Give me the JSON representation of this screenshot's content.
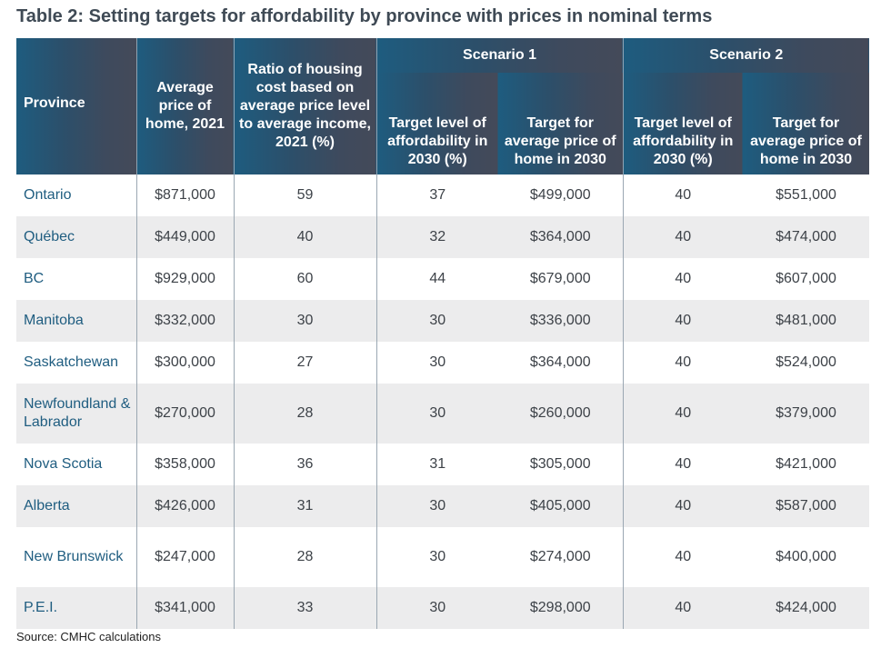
{
  "title": "Table 2: Setting targets for affordability by province with prices in nominal terms",
  "headers": {
    "province": "Province",
    "avg_price": "Average price of home, 2021",
    "ratio": "Ratio of housing cost based on average price level to average income, 2021 (%)",
    "scenario1": "Scenario 1",
    "scenario2": "Scenario 2",
    "target_level": "Target level of affordability in 2030 (%)",
    "target_price": "Target for average price of home in 2030"
  },
  "rows": [
    {
      "province": "Ontario",
      "avg_price": "$871,000",
      "ratio": "59",
      "s1_level": "37",
      "s1_price": "$499,000",
      "s2_level": "40",
      "s2_price": "$551,000"
    },
    {
      "province": "Québec",
      "avg_price": "$449,000",
      "ratio": "40",
      "s1_level": "32",
      "s1_price": "$364,000",
      "s2_level": "40",
      "s2_price": "$474,000"
    },
    {
      "province": "BC",
      "avg_price": "$929,000",
      "ratio": "60",
      "s1_level": "44",
      "s1_price": "$679,000",
      "s2_level": "40",
      "s2_price": "$607,000"
    },
    {
      "province": "Manitoba",
      "avg_price": "$332,000",
      "ratio": "30",
      "s1_level": "30",
      "s1_price": "$336,000",
      "s2_level": "40",
      "s2_price": "$481,000"
    },
    {
      "province": "Saskatchewan",
      "avg_price": "$300,000",
      "ratio": "27",
      "s1_level": "30",
      "s1_price": "$364,000",
      "s2_level": "40",
      "s2_price": "$524,000"
    },
    {
      "province": "Newfoundland & Labrador",
      "avg_price": "$270,000",
      "ratio": "28",
      "s1_level": "30",
      "s1_price": "$260,000",
      "s2_level": "40",
      "s2_price": "$379,000"
    },
    {
      "province": "Nova Scotia",
      "avg_price": "$358,000",
      "ratio": "36",
      "s1_level": "31",
      "s1_price": "$305,000",
      "s2_level": "40",
      "s2_price": "$421,000"
    },
    {
      "province": "Alberta",
      "avg_price": "$426,000",
      "ratio": "31",
      "s1_level": "30",
      "s1_price": "$405,000",
      "s2_level": "40",
      "s2_price": "$587,000"
    },
    {
      "province": "New Brunswick",
      "avg_price": "$247,000",
      "ratio": "28",
      "s1_level": "30",
      "s1_price": "$274,000",
      "s2_level": "40",
      "s2_price": "$400,000"
    },
    {
      "province": "P.E.I.",
      "avg_price": "$341,000",
      "ratio": "33",
      "s1_level": "30",
      "s1_price": "$298,000",
      "s2_level": "40",
      "s2_price": "$424,000"
    }
  ],
  "source": "Source: CMHC calculations",
  "colors": {
    "header_start": "#1e5c7f",
    "header_end": "#444a59",
    "province_text": "#1f5d80",
    "row_alt": "#ececed"
  }
}
